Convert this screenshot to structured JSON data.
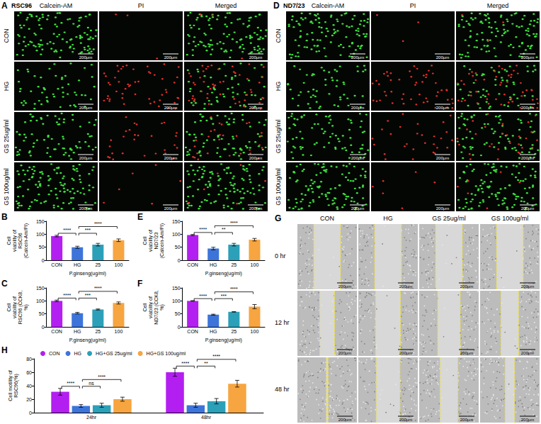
{
  "image_panels": [
    {
      "letter": "A",
      "type": "fluorescence",
      "cell_line": "RSC96",
      "columns": [
        "Calcein-AM",
        "PI",
        "Merged"
      ],
      "rows": [
        "CON",
        "HG",
        "GS 25ug/ml",
        "GS 100ug/ml"
      ],
      "scale_bar": "200μm"
    },
    {
      "letter": "D",
      "type": "fluorescence",
      "cell_line": "ND7/23",
      "columns": [
        "Calcein-AM",
        "PI",
        "Merged"
      ],
      "rows": [
        "CON",
        "HG",
        "GS 25ug/ml",
        "GS 100ug/ml"
      ],
      "scale_bar": "200μm"
    },
    {
      "letter": "G",
      "type": "brightfield",
      "columns": [
        "CON",
        "HG",
        "GS 25ug/ml",
        "GS 100ug/ml"
      ],
      "rows": [
        "0 hr",
        "12 hr",
        "48 hr"
      ],
      "scale_bar": "200μm"
    }
  ],
  "chart_data": [
    {
      "letter": "B",
      "type": "bar",
      "ylabel": "Cell viability of RSC96 (Calcein-Am/PI)",
      "xlabel": "P.ginseng(ug/ml)",
      "categories": [
        "CON",
        "HG",
        "25",
        "100"
      ],
      "values": [
        93,
        50,
        60,
        77
      ],
      "errors": [
        3,
        4,
        5,
        5
      ],
      "colors": [
        "#b31ff0",
        "#3d74d9",
        "#2ba0b8",
        "#f7a540"
      ],
      "ylim": [
        0,
        150
      ],
      "yticks": [
        0,
        50,
        100,
        150
      ],
      "grid": false,
      "comparisons": [
        {
          "from": "CON",
          "to": "HG",
          "label": "****"
        },
        {
          "from": "HG",
          "to": "25",
          "label": "***"
        },
        {
          "from": "HG",
          "to": "100",
          "label": "****"
        }
      ]
    },
    {
      "letter": "C",
      "type": "bar",
      "ylabel": "Cell viability of RSC96 (CCK8, %)",
      "xlabel": "P.ginseng(ug/ml)",
      "categories": [
        "CON",
        "HG",
        "25",
        "100"
      ],
      "values": [
        100,
        53,
        67,
        92
      ],
      "errors": [
        3,
        3,
        2,
        4
      ],
      "colors": [
        "#b31ff0",
        "#3d74d9",
        "#2ba0b8",
        "#f7a540"
      ],
      "ylim": [
        0,
        150
      ],
      "yticks": [
        0,
        50,
        100,
        150
      ],
      "grid": false,
      "comparisons": [
        {
          "from": "CON",
          "to": "HG",
          "label": "****"
        },
        {
          "from": "HG",
          "to": "25",
          "label": "***"
        },
        {
          "from": "HG",
          "to": "100",
          "label": "****"
        }
      ]
    },
    {
      "letter": "E",
      "type": "bar",
      "ylabel": "Cell viability of ND7/23 (Calcein-Am/PI)",
      "xlabel": "P.ginseng(ug/ml)",
      "categories": [
        "CON",
        "HG",
        "25",
        "100"
      ],
      "values": [
        97,
        45,
        60,
        79
      ],
      "errors": [
        2,
        5,
        5,
        5
      ],
      "colors": [
        "#b31ff0",
        "#3d74d9",
        "#2ba0b8",
        "#f7a540"
      ],
      "ylim": [
        0,
        150
      ],
      "yticks": [
        0,
        50,
        100,
        150
      ],
      "grid": false,
      "comparisons": [
        {
          "from": "CON",
          "to": "HG",
          "label": "****"
        },
        {
          "from": "HG",
          "to": "25",
          "label": "**"
        },
        {
          "from": "HG",
          "to": "100",
          "label": "****"
        }
      ]
    },
    {
      "letter": "F",
      "type": "bar",
      "ylabel": "Cell viability of ND7/23 (CCK8, %)",
      "xlabel": "P.ginseng(ug/ml)",
      "categories": [
        "CON",
        "HG",
        "25",
        "100"
      ],
      "values": [
        100,
        47,
        58,
        78
      ],
      "errors": [
        1,
        2,
        1,
        8
      ],
      "colors": [
        "#b31ff0",
        "#3d74d9",
        "#2ba0b8",
        "#f7a540"
      ],
      "ylim": [
        0,
        150
      ],
      "yticks": [
        0,
        50,
        100,
        150
      ],
      "grid": false,
      "comparisons": [
        {
          "from": "CON",
          "to": "HG",
          "label": "****"
        },
        {
          "from": "HG",
          "to": "25",
          "label": "***"
        },
        {
          "from": "HG",
          "to": "100",
          "label": "****"
        }
      ]
    },
    {
      "letter": "H",
      "type": "grouped_bar",
      "ylabel": "Cell motility of RSC96(%)",
      "categories": [
        "24hr",
        "48hr"
      ],
      "series": [
        {
          "name": "CON",
          "color": "#b31ff0",
          "values": [
            31,
            60
          ],
          "errors": [
            5,
            6
          ]
        },
        {
          "name": "HG",
          "color": "#3d74d9",
          "values": [
            10,
            11
          ],
          "errors": [
            2,
            3
          ]
        },
        {
          "name": "HG+GS 25ug/ml",
          "color": "#2ba0b8",
          "values": [
            11,
            17
          ],
          "errors": [
            3,
            4
          ]
        },
        {
          "name": "HG+GS 100ug/ml",
          "color": "#f7a540",
          "values": [
            20,
            43
          ],
          "errors": [
            3,
            5
          ]
        }
      ],
      "ylim": [
        0,
        80
      ],
      "yticks": [
        0,
        20,
        40,
        60,
        80
      ],
      "grid": false,
      "legend": "top",
      "comparisons": [
        {
          "group": "24hr",
          "from": "CON",
          "to": "HG",
          "label": "****"
        },
        {
          "group": "24hr",
          "from": "HG",
          "to": "HG+GS 25ug/ml",
          "label": "ns"
        },
        {
          "group": "24hr",
          "from": "HG",
          "to": "HG+GS 100ug/ml",
          "label": "****"
        },
        {
          "group": "48hr",
          "from": "CON",
          "to": "HG",
          "label": "****"
        },
        {
          "group": "48hr",
          "from": "HG",
          "to": "HG+GS 25ug/ml",
          "label": "**"
        },
        {
          "group": "48hr",
          "from": "HG",
          "to": "HG+GS 100ug/ml",
          "label": "****"
        }
      ]
    }
  ]
}
